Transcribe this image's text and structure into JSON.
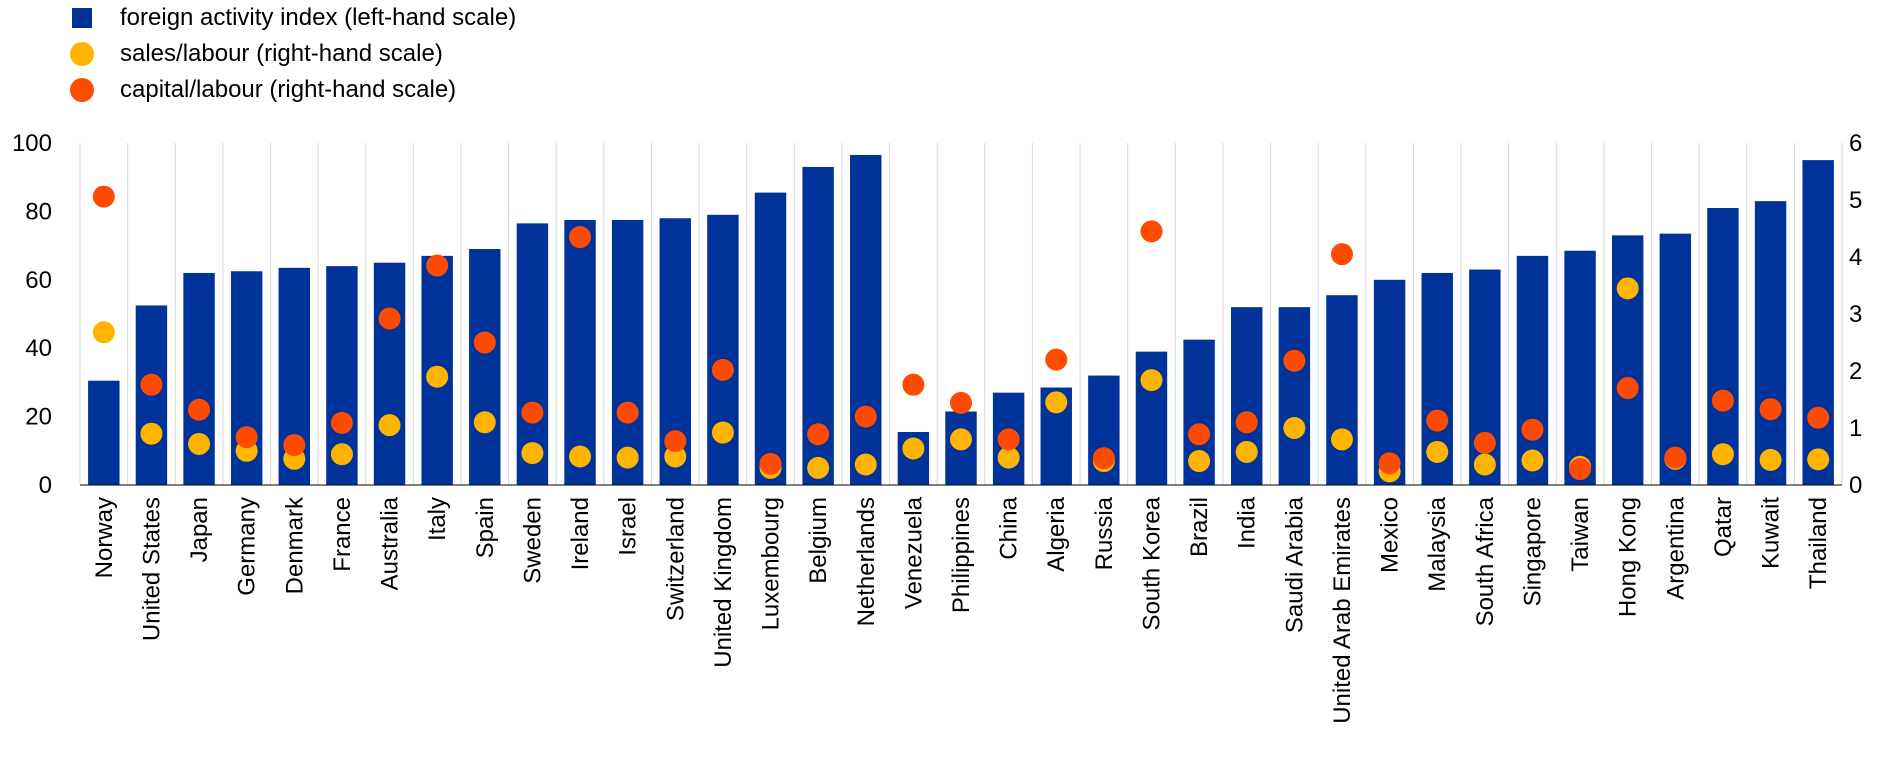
{
  "chart_data": {
    "type": "bar",
    "categories": [
      "Norway",
      "United States",
      "Japan",
      "Germany",
      "Denmark",
      "France",
      "Australia",
      "Italy",
      "Spain",
      "Sweden",
      "Ireland",
      "Israel",
      "Switzerland",
      "United Kingdom",
      "Luxembourg",
      "Belgium",
      "Netherlands",
      "Venezuela",
      "Philippines",
      "China",
      "Algeria",
      "Russia",
      "South Korea",
      "Brazil",
      "India",
      "Saudi Arabia",
      "United Arab Emirates",
      "Mexico",
      "Malaysia",
      "South Africa",
      "Singapore",
      "Taiwan",
      "Hong Kong",
      "Argentina",
      "Qatar",
      "Kuwait",
      "Thailand"
    ],
    "series": [
      {
        "name": "foreign activity index (left-hand scale)",
        "kind": "bar",
        "axis": "left",
        "color": "#003399",
        "values": [
          30.5,
          52.5,
          62,
          62.5,
          63.5,
          64,
          65,
          67,
          69,
          76.5,
          77.5,
          77.5,
          78,
          79,
          85.5,
          93,
          96.5,
          15.5,
          21.5,
          27,
          28.5,
          32,
          39,
          42.5,
          52,
          52,
          55.5,
          60,
          62,
          63,
          67,
          68.5,
          73,
          73.5,
          81,
          83,
          95
        ]
      },
      {
        "name": "sales/labour (right-hand scale)",
        "kind": "dot",
        "axis": "right",
        "color": "#FFB400",
        "values": [
          2.68,
          0.9,
          0.72,
          0.6,
          0.46,
          0.54,
          1.05,
          1.9,
          1.1,
          0.56,
          0.5,
          0.48,
          0.5,
          0.92,
          0.3,
          0.3,
          0.36,
          0.64,
          0.8,
          0.48,
          1.45,
          0.42,
          1.84,
          0.42,
          0.58,
          1.0,
          0.8,
          0.24,
          0.58,
          0.36,
          0.43,
          0.32,
          3.45,
          0.46,
          0.54,
          0.44,
          0.45
        ]
      },
      {
        "name": "capital/labour (right-hand scale)",
        "kind": "dot",
        "axis": "right",
        "color": "#FF4B00",
        "values": [
          5.06,
          1.76,
          1.32,
          0.84,
          0.7,
          1.09,
          2.92,
          3.85,
          2.5,
          1.27,
          4.35,
          1.27,
          0.77,
          2.02,
          0.37,
          0.89,
          1.2,
          1.76,
          1.44,
          0.8,
          2.2,
          0.47,
          4.45,
          0.89,
          1.1,
          2.18,
          4.05,
          0.38,
          1.13,
          0.74,
          0.97,
          0.28,
          1.7,
          0.48,
          1.48,
          1.33,
          1.18
        ]
      }
    ],
    "left_axis": {
      "ylim": [
        0,
        100
      ],
      "ticks": [
        "0",
        "20",
        "40",
        "60",
        "80",
        "100"
      ]
    },
    "right_axis": {
      "ylim": [
        0,
        6
      ],
      "ticks": [
        "0",
        "1",
        "2",
        "3",
        "4",
        "5",
        "6"
      ]
    },
    "grid": "vertical separators between categories",
    "legend_placement": "top-left"
  }
}
